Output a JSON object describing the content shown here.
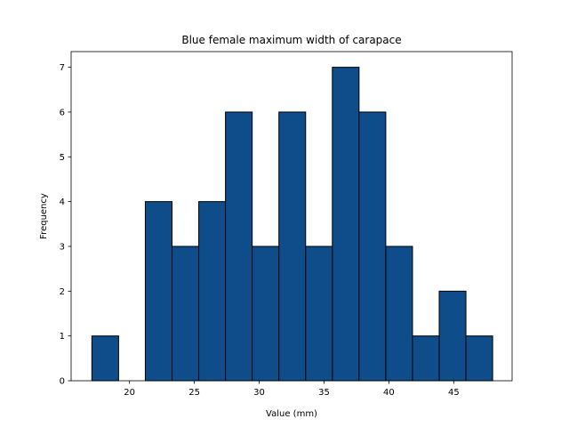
{
  "chart_data": {
    "type": "bar",
    "subtype": "histogram",
    "title": "Blue female maximum width of carapace",
    "xlabel": "Value (mm)",
    "ylabel": "Frequency",
    "xlim": [
      15.5,
      49.5
    ],
    "ylim": [
      0,
      7.35
    ],
    "xticks": [
      20,
      25,
      30,
      35,
      40,
      45
    ],
    "yticks": [
      0,
      1,
      2,
      3,
      4,
      5,
      6,
      7
    ],
    "bin_edges": [
      17.1,
      19.16,
      21.22,
      23.28,
      25.34,
      27.4,
      29.46,
      31.52,
      33.58,
      35.64,
      37.7,
      39.76,
      41.82,
      43.88,
      45.94,
      48.0
    ],
    "values": [
      1,
      0,
      4,
      3,
      4,
      6,
      3,
      6,
      3,
      7,
      6,
      3,
      1,
      2,
      1
    ],
    "bar_color": "#0f4c8a",
    "edge_color": "#000000",
    "grid": false
  }
}
